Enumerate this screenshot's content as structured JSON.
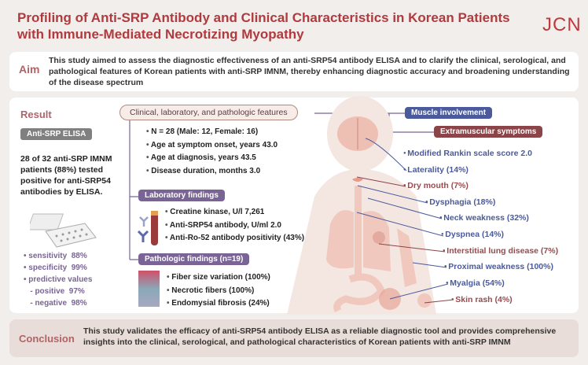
{
  "title": "Profiling of Anti-SRP Antibody and Clinical Characteristics in Korean Patients with Immune-Mediated Necrotizing Myopathy",
  "logo": "JCN",
  "aim": {
    "label": "Aim",
    "text": "This study aimed to assess the diagnostic effectiveness of an anti-SRP54 antibody ELISA and to clarify the clinical, serological, and pathological features of Korean patients with anti-SRP IMNM, thereby enhancing diagnostic accuracy and broadening understanding of the disease spectrum"
  },
  "result": {
    "label": "Result",
    "elisa_tag": "Anti-SRP ELISA",
    "elisa_text": "28 of 32 anti-SRP IMNM patients (88%) tested positive for anti-SRP54 antibodies by ELISA.",
    "stats": [
      "• sensitivity  88%",
      "• specificity  99%",
      "• predictive values",
      "   - positive  97%",
      "   - negative  98%"
    ]
  },
  "features": {
    "label": "Clinical, laboratory, and pathologic features",
    "items": [
      "N = 28 (Male: 12, Female: 16)",
      "Age at symptom onset, years 43.0",
      "Age at diagnosis, years 43.5",
      "Disease duration, months 3.0"
    ],
    "lab_label": "Laboratory findings",
    "lab_items": [
      "Creatine kinase, U/l 7,261",
      "Anti-SRP54 antibody, U/ml 2.0",
      "Anti-Ro-52 antibody positivity (43%)"
    ],
    "path_label": "Pathologic findings (n=19)",
    "path_items": [
      "Fiber size variation (100%)",
      "Necrotic fibers (100%)",
      "Endomysial fibrosis (24%)"
    ]
  },
  "muscle_label": "Muscle involvement",
  "extra_label": "Extramuscular symptoms",
  "symptoms": [
    {
      "text": "Modified Rankin scale score 2.0",
      "type": "muscle"
    },
    {
      "text": "Laterality (14%)",
      "type": "muscle"
    },
    {
      "text": "Dry mouth (7%)",
      "type": "extra"
    },
    {
      "text": "Dysphagia (18%)",
      "type": "muscle"
    },
    {
      "text": "Neck weakness (32%)",
      "type": "muscle"
    },
    {
      "text": "Dyspnea (14%)",
      "type": "muscle"
    },
    {
      "text": "Interstitial lung disease (7%)",
      "type": "extra"
    },
    {
      "text": "Proximal weakness (100%)",
      "type": "muscle"
    },
    {
      "text": "Myalgia (54%)",
      "type": "muscle"
    },
    {
      "text": "Skin rash (4%)",
      "type": "extra"
    }
  ],
  "conclusion": {
    "label": "Conclusion",
    "text": "This study validates the efficacy of anti-SRP54 antibody ELISA as a reliable diagnostic tool and provides comprehensive insights into the clinical, serological, and pathological characteristics of Korean patients with anti-SRP IMNM"
  },
  "colors": {
    "title": "#b03a3e",
    "muscle": "#4a5a9c",
    "extra": "#8b4448",
    "section": "#7a6496"
  }
}
